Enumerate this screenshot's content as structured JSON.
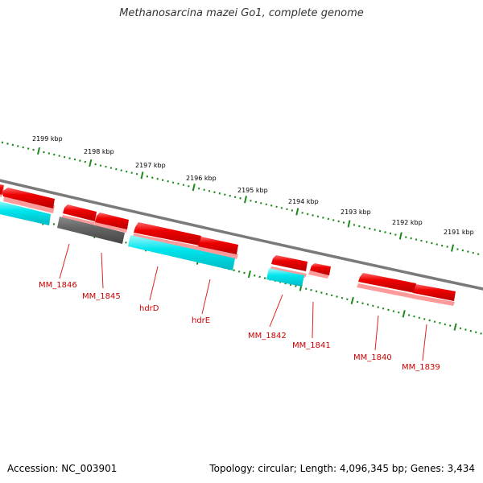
{
  "title": "Methanosarcina mazei Go1, complete genome",
  "footer": {
    "accession": "Accession: NC_003901",
    "info": "Topology: circular; Length: 4,096,345 bp; Genes: 3,434"
  },
  "colors": {
    "gene_red": "#ee0000",
    "gene_red_shadow": "#ff9a9a",
    "gene_cyan": "#00e6ee",
    "gene_gray": "#666666",
    "backbone": "#7a7a7a",
    "tick_green": "#1a8a1a",
    "label_red": "#cc0000"
  },
  "scale_labels": [
    "2199 kbp",
    "2198 kbp",
    "2197 kbp",
    "2196 kbp",
    "2195 kbp",
    "2194 kbp",
    "2193 kbp",
    "2192 kbp",
    "2191 kbp"
  ],
  "gene_labels": [
    "MM_1846",
    "MM_1845",
    "hdrD",
    "hdrE",
    "MM_1842",
    "MM_1841",
    "MM_1840",
    "MM_1839"
  ]
}
